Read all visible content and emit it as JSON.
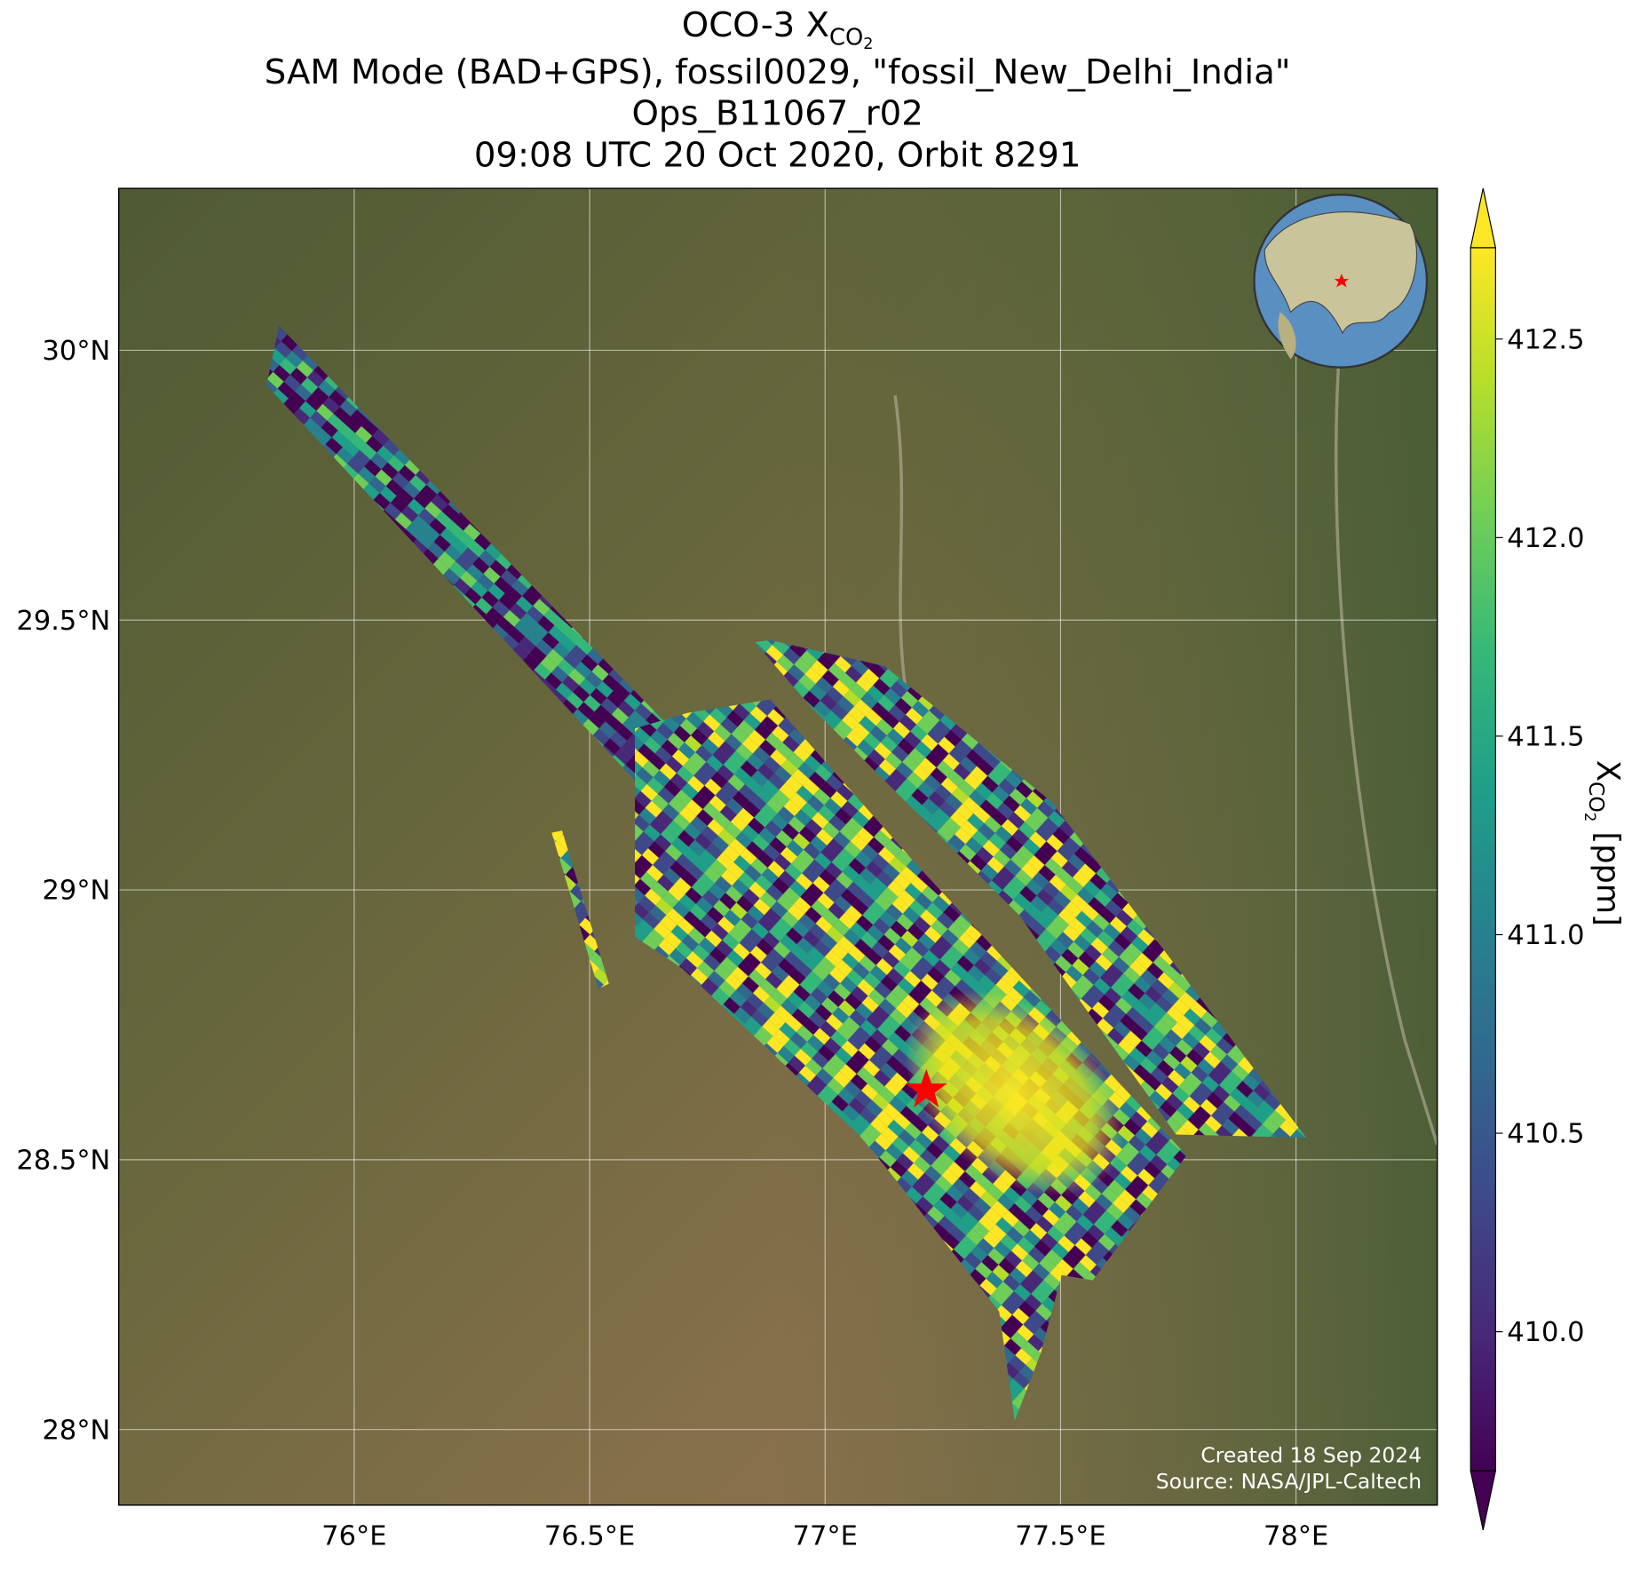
{
  "chart_data": {
    "type": "map",
    "title_main": "OCO-3 X",
    "title_sub": "CO",
    "title_subsub": "2",
    "subtitle_lines": [
      "SAM Mode (BAD+GPS), fossil0029, \"fossil_New_Delhi_India\"",
      "Ops_B11067_r02",
      "09:08 UTC 20 Oct 2020, Orbit 8291"
    ],
    "xlim": [
      75.5,
      78.3
    ],
    "ylim": [
      27.86,
      30.3
    ],
    "xticks": [
      {
        "value": 76,
        "label": "76°E"
      },
      {
        "value": 76.5,
        "label": "76.5°E"
      },
      {
        "value": 77,
        "label": "77°E"
      },
      {
        "value": 77.5,
        "label": "77.5°E"
      },
      {
        "value": 78,
        "label": "78°E"
      }
    ],
    "yticks": [
      {
        "value": 28,
        "label": "28°N"
      },
      {
        "value": 28.5,
        "label": "28.5°N"
      },
      {
        "value": 29,
        "label": "29°N"
      },
      {
        "value": 29.5,
        "label": "29.5°N"
      },
      {
        "value": 30,
        "label": "30°N"
      }
    ],
    "grid": true,
    "colorbar": {
      "lim": [
        409.65,
        412.73
      ],
      "ticks": [
        {
          "value": 410,
          "label": "410.0"
        },
        410.5,
        {
          "value": 411,
          "label": "411.0"
        },
        411.5,
        {
          "value": 412,
          "label": "412.0"
        },
        412.5
      ],
      "label_main": "X",
      "label_sub": "CO",
      "label_subsub": "2",
      "label_unit": " [ppm]",
      "colormap": [
        "#440154",
        "#482878",
        "#3e4989",
        "#31688e",
        "#26828e",
        "#1f9e89",
        "#35b779",
        "#6ece58",
        "#b5de2b",
        "#fde725"
      ]
    },
    "annotations": [
      "Created 18 Sep 2024",
      "Source: NASA/JPL-Caltech"
    ]
  }
}
